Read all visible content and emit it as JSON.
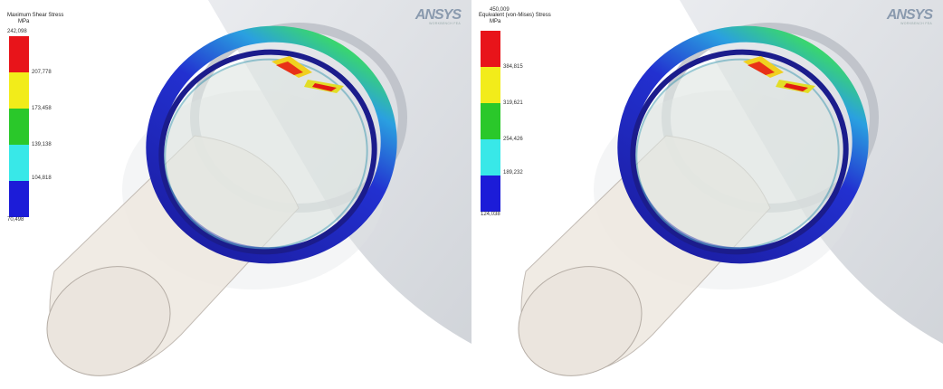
{
  "brand": {
    "logo_text": "ANSYS",
    "logo_subtext": "WORKBENCH FEA"
  },
  "panels": [
    {
      "id": "left",
      "legend": {
        "title": "Maximum Shear Stress",
        "unit": "MPa",
        "labels": [
          "242,098",
          "207,778",
          "173,458",
          "139,138",
          "104,818",
          "70,498"
        ],
        "colors": [
          "#e8141a",
          "#f2ec1a",
          "#2ac82a",
          "#38e8e8",
          "#1c1cd8"
        ]
      }
    },
    {
      "id": "right",
      "legend": {
        "title": "Equivalent (von-Mises) Stress",
        "unit": "MPa",
        "labels": [
          "450,009",
          "384,815",
          "319,621",
          "254,426",
          "189,232",
          "124,038"
        ],
        "colors": [
          "#e8141a",
          "#f2ec1a",
          "#2ac82a",
          "#38e8e8",
          "#1c1cd8"
        ]
      }
    }
  ]
}
